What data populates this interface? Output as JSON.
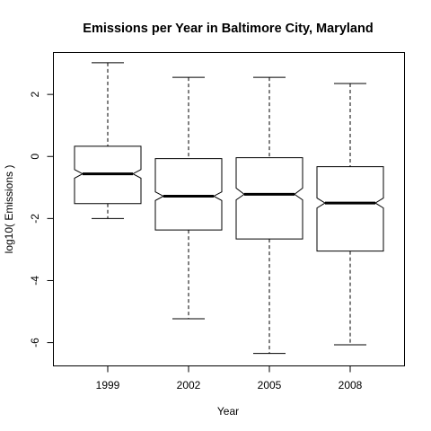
{
  "chart_data": {
    "type": "boxplot",
    "notched": true,
    "title": "Emissions per Year in Baltimore City, Maryland",
    "xlabel": "Year",
    "ylabel": "log10( Emissions )",
    "categories": [
      "1999",
      "2002",
      "2005",
      "2008"
    ],
    "ylim": [
      -6.75,
      3.35
    ],
    "yticks": [
      -6,
      -4,
      -2,
      0,
      2
    ],
    "boxes": [
      {
        "category": "1999",
        "whisker_low": -2.0,
        "q1": -1.52,
        "notch_low": -0.7,
        "median": -0.56,
        "notch_high": -0.42,
        "q3": 0.33,
        "whisker_high": 3.02
      },
      {
        "category": "2002",
        "whisker_low": -5.23,
        "q1": -2.37,
        "notch_low": -1.42,
        "median": -1.28,
        "notch_high": -1.14,
        "q3": -0.07,
        "whisker_high": 2.55
      },
      {
        "category": "2005",
        "whisker_low": -6.35,
        "q1": -2.66,
        "notch_low": -1.4,
        "median": -1.22,
        "notch_high": -1.02,
        "q3": -0.04,
        "whisker_high": 2.55
      },
      {
        "category": "2008",
        "whisker_low": -6.07,
        "q1": -3.05,
        "notch_low": -1.66,
        "median": -1.5,
        "notch_high": -1.34,
        "q3": -0.33,
        "whisker_high": 2.35
      }
    ],
    "grid": false,
    "legend": "none",
    "colors": {
      "stroke": "#000000",
      "background": "#ffffff"
    }
  }
}
